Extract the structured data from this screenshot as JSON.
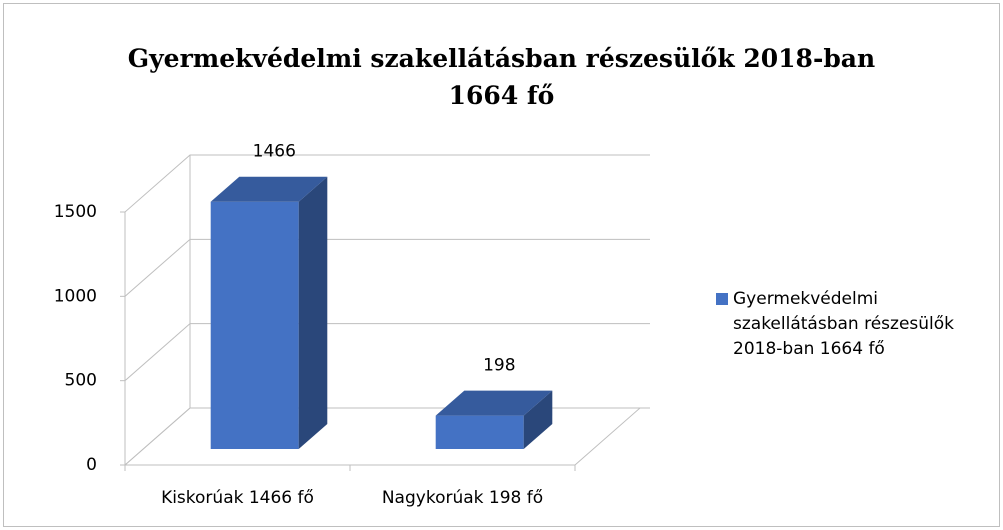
{
  "chart_data": {
    "type": "bar3d",
    "title": "Gyermekvédelmi szakellátásban részesülők 2018-ban 1664 fő",
    "categories": [
      "Kiskorúak 1466 fő",
      "Nagykorúak 198 fő"
    ],
    "series": [
      {
        "name": "Gyermekvédelmi szakellátásban részesülők 2018-ban 1664 fő",
        "color": "#4472c4",
        "values": [
          1466,
          198
        ]
      }
    ],
    "ylim": [
      0,
      1500
    ],
    "yticks": [
      0,
      500,
      1000,
      1500
    ],
    "grid": true,
    "legend": "right"
  }
}
